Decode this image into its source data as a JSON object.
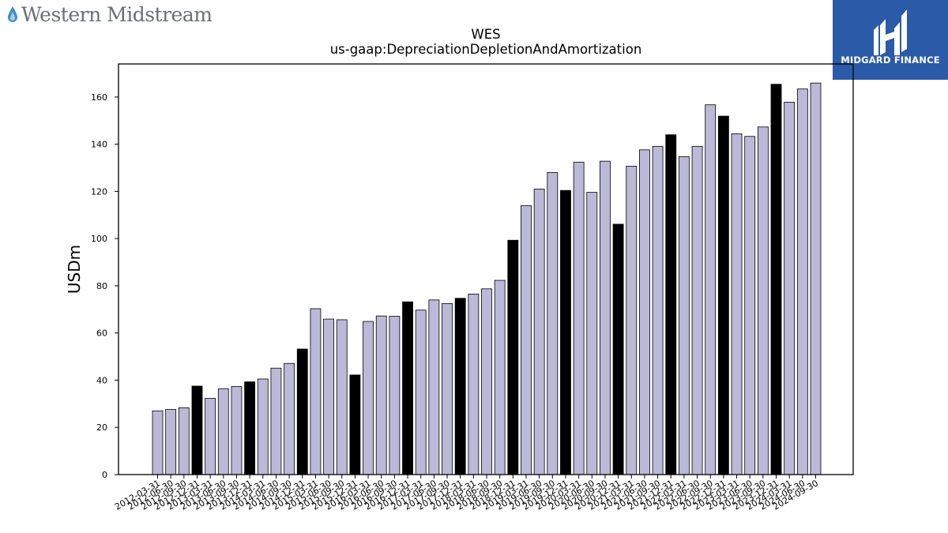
{
  "header": {
    "company_logo_text": "Western Midstream",
    "brand_name": "MIDGARD FINANCE"
  },
  "colors": {
    "bar_fill": "#bcb8d8",
    "bar_highlight": "#000000",
    "brand_box": "#2b5aa8",
    "logo_text": "#6b6e72"
  },
  "chart_data": {
    "type": "bar",
    "title": "WES",
    "subtitle": "us-gaap:DepreciationDepletionAndAmortization",
    "xlabel": "",
    "ylabel": "USDm",
    "ylim": [
      0,
      174
    ],
    "yticks": [
      0,
      20,
      40,
      60,
      80,
      100,
      120,
      140,
      160
    ],
    "grid": false,
    "highlight_rule": "fiscal year-end (12-31) bars drawn in black",
    "categories": [
      "2012-03-31",
      "2012-06-30",
      "2012-09-30",
      "2012-12-31",
      "2013-03-31",
      "2013-06-30",
      "2013-09-30",
      "2013-12-31",
      "2014-03-31",
      "2014-06-30",
      "2014-09-30",
      "2014-12-31",
      "2015-03-31",
      "2015-06-30",
      "2015-09-30",
      "2015-12-31",
      "2016-03-31",
      "2016-06-30",
      "2016-09-30",
      "2016-12-31",
      "2017-03-31",
      "2017-06-30",
      "2017-09-30",
      "2017-12-31",
      "2018-03-31",
      "2018-06-30",
      "2018-09-30",
      "2018-12-31",
      "2019-03-31",
      "2019-06-30",
      "2019-09-30",
      "2019-12-31",
      "2020-03-31",
      "2020-06-30",
      "2020-09-30",
      "2020-12-31",
      "2021-03-31",
      "2021-06-30",
      "2021-09-30",
      "2021-12-31",
      "2022-03-31",
      "2022-06-30",
      "2022-09-30",
      "2022-12-31",
      "2023-03-31",
      "2023-06-30",
      "2023-09-30",
      "2023-12-31",
      "2024-03-31",
      "2024-06-30",
      "2024-09-30"
    ],
    "values": [
      27,
      27.6,
      28.3,
      37.5,
      32.3,
      36.4,
      37.3,
      39.3,
      40.5,
      45.1,
      47.1,
      53.2,
      70.3,
      65.9,
      65.6,
      42.2,
      64.9,
      67.2,
      67.1,
      73.2,
      69.7,
      74,
      72.5,
      74.7,
      76.5,
      78.7,
      82.3,
      99.3,
      114,
      121,
      128,
      120.4,
      132.4,
      119.6,
      132.8,
      106.1,
      130.7,
      137.6,
      139.1,
      144,
      134.7,
      139.1,
      156.7,
      151.9,
      144.4,
      143.3,
      147.3,
      165.4,
      157.8,
      163.4,
      165.9
    ]
  }
}
